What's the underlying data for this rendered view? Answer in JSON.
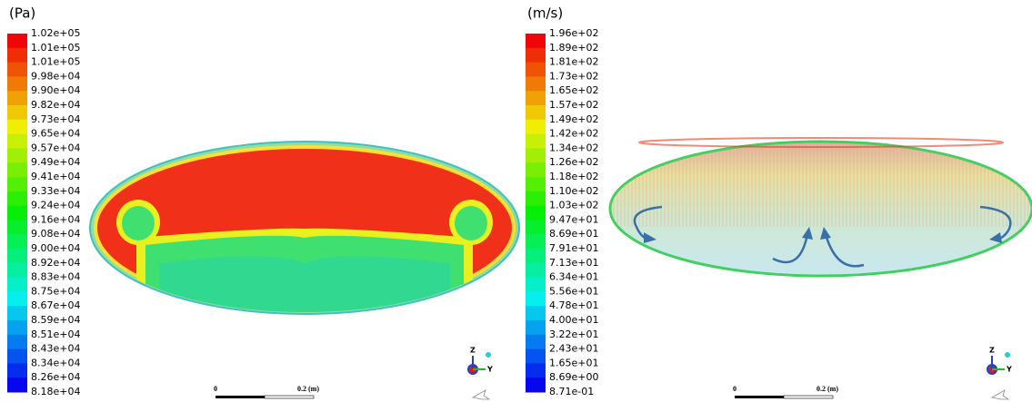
{
  "panels": [
    {
      "unit": "(Pa)",
      "legend": [
        "1.02e+05",
        "1.01e+05",
        "1.01e+05",
        "9.98e+04",
        "9.90e+04",
        "9.82e+04",
        "9.73e+04",
        "9.65e+04",
        "9.57e+04",
        "9.49e+04",
        "9.41e+04",
        "9.33e+04",
        "9.24e+04",
        "9.16e+04",
        "9.08e+04",
        "9.00e+04",
        "8.92e+04",
        "8.83e+04",
        "8.75e+04",
        "8.67e+04",
        "8.59e+04",
        "8.51e+04",
        "8.43e+04",
        "8.34e+04",
        "8.26e+04",
        "8.18e+04"
      ],
      "scale_bar": {
        "start": "0",
        "end": "0.2 (m)"
      },
      "triad": {
        "z": "Z",
        "y": "Y"
      }
    },
    {
      "unit": "(m/s)",
      "legend": [
        "1.96e+02",
        "1.89e+02",
        "1.81e+02",
        "1.73e+02",
        "1.65e+02",
        "1.57e+02",
        "1.49e+02",
        "1.42e+02",
        "1.34e+02",
        "1.26e+02",
        "1.18e+02",
        "1.10e+02",
        "1.03e+02",
        "9.47e+01",
        "8.69e+01",
        "7.91e+01",
        "7.13e+01",
        "6.34e+01",
        "5.56e+01",
        "4.78e+01",
        "4.00e+01",
        "3.22e+01",
        "2.43e+01",
        "1.65e+01",
        "8.69e+00",
        "8.71e-01"
      ],
      "scale_bar": {
        "start": "0",
        "end": "0.2 (m)"
      },
      "triad": {
        "z": "Z",
        "y": "Y"
      }
    }
  ]
}
